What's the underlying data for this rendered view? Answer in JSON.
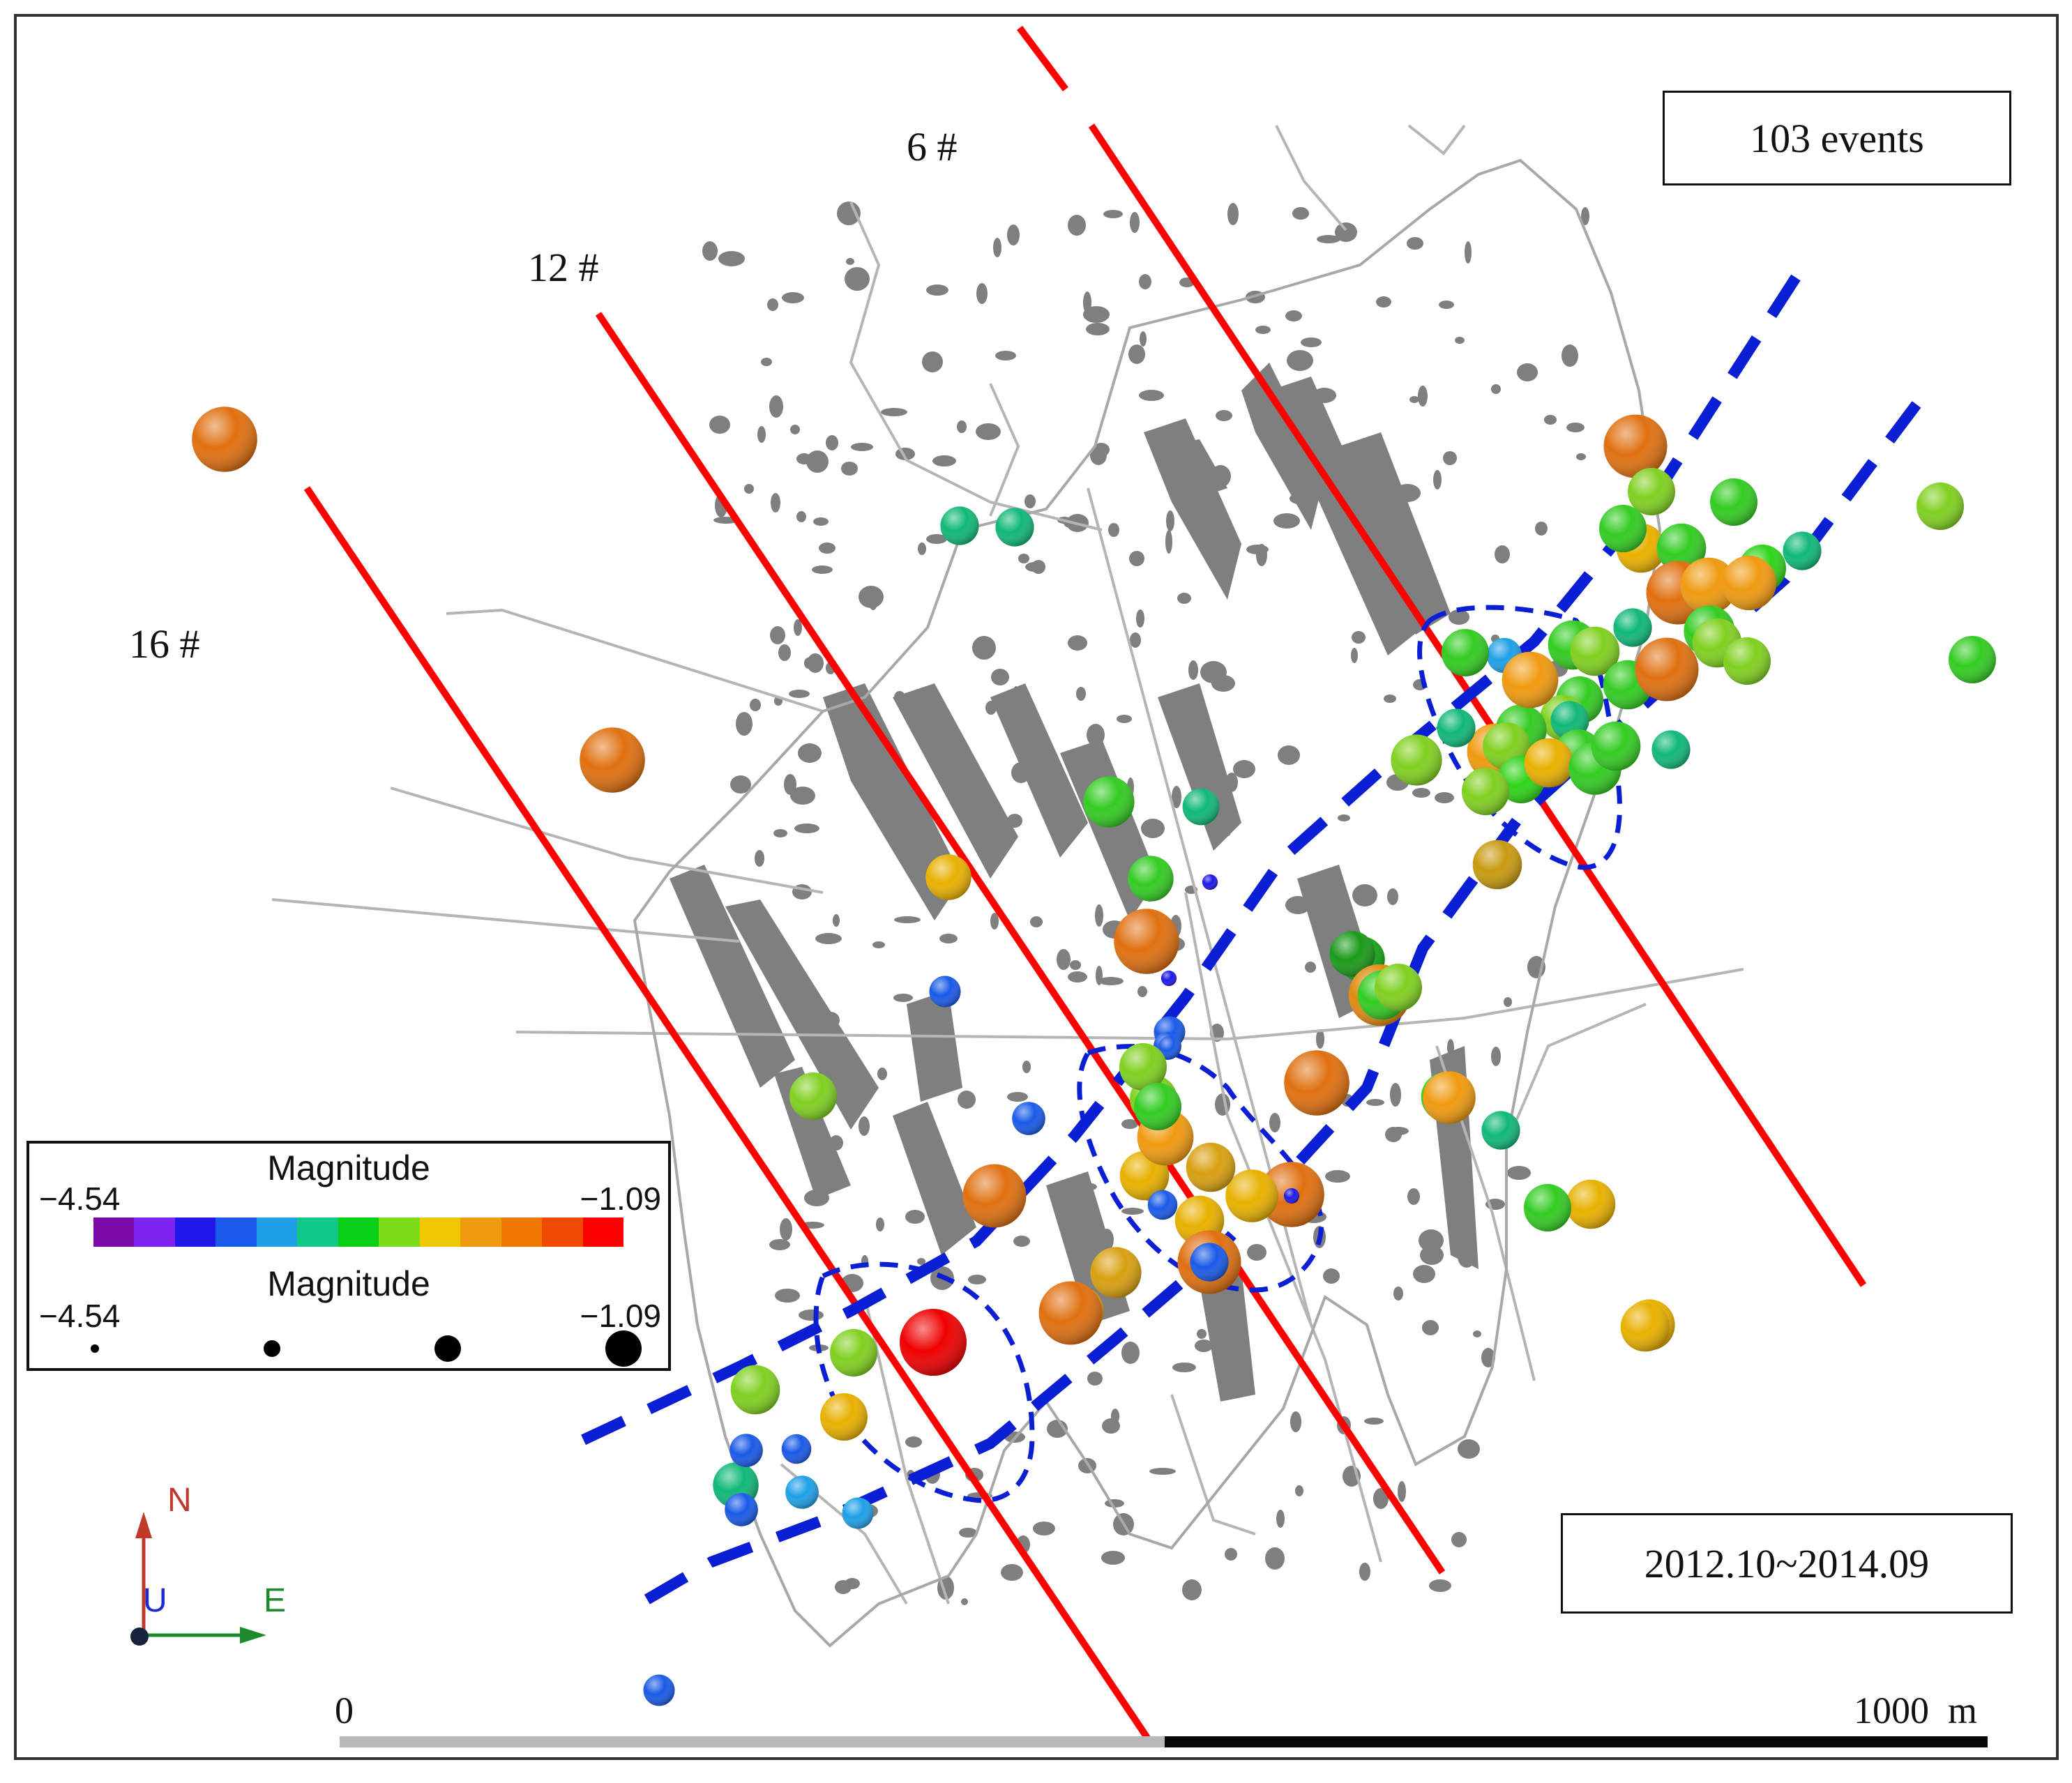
{
  "map": {
    "events_label": "103 events",
    "date_range": "2012.10~2014.09",
    "line_labels": [
      "6 #",
      "12 #",
      "16 #"
    ]
  },
  "colors": {
    "mine_fill": "#7f7f7f",
    "roadway": "#b5b5b5",
    "working_face_line": "#ff0000",
    "fault_dash": "#0a1fd4",
    "frame": "#333333"
  },
  "legend": {
    "color_title": "Magnitude",
    "size_title": "Magnitude",
    "min": "−4.54",
    "max": "−1.09",
    "min_value": -4.54,
    "max_value": -1.09,
    "palette": [
      "#7a0aa8",
      "#7e22f0",
      "#1f18e8",
      "#1a5ae8",
      "#1ea0e6",
      "#10c888",
      "#08d018",
      "#7cdc18",
      "#f0c800",
      "#f09a10",
      "#f07800",
      "#f04a00",
      "#ff0000"
    ],
    "size_steps": [
      -4.54,
      -3.39,
      -2.24,
      -1.09
    ]
  },
  "compass": {
    "north": "N",
    "east": "E",
    "up": "U"
  },
  "scale_bar": {
    "start": "0",
    "end": "1000",
    "unit": "m"
  },
  "events": [
    {
      "m": -1.5,
      "c": "#e07010"
    },
    {
      "m": -1.5,
      "c": "#e07010"
    },
    {
      "m": -2.6,
      "c": "#e8b000"
    },
    {
      "m": -3.0,
      "c": "#10b878"
    },
    {
      "m": -3.0,
      "c": "#10b878"
    },
    {
      "m": -2.3,
      "c": "#33cc22"
    },
    {
      "m": -3.1,
      "c": "#10b878"
    },
    {
      "m": -2.6,
      "c": "#33cc22"
    },
    {
      "m": -1.5,
      "c": "#e07010"
    },
    {
      "m": -3.4,
      "c": "#1a5ae8"
    },
    {
      "m": -3.4,
      "c": "#1a5ae8"
    },
    {
      "m": -2.5,
      "c": "#80d020"
    },
    {
      "m": -3.6,
      "c": "#1a5ae8"
    },
    {
      "m": -1.5,
      "c": "#e07010"
    },
    {
      "m": -2.6,
      "c": "#11a611"
    },
    {
      "m": -2.5,
      "c": "#80d020"
    },
    {
      "m": -2.4,
      "c": "#2ed418"
    },
    {
      "m": -2.5,
      "c": "#80d020"
    },
    {
      "m": -2.4,
      "c": "#e8b000"
    },
    {
      "m": -3.2,
      "c": "#1a5ae8"
    },
    {
      "m": -3.5,
      "c": "#1a5ae8"
    },
    {
      "m": -2.4,
      "c": "#e8b000"
    },
    {
      "m": -1.6,
      "c": "#e07010"
    },
    {
      "m": -3.3,
      "c": "#1ea0e6"
    },
    {
      "m": -1.5,
      "c": "#e07010"
    },
    {
      "m": -2.3,
      "c": "#d8a010"
    },
    {
      "m": -1.6,
      "c": "#e07010"
    },
    {
      "m": -3.5,
      "c": "#1a5ae8"
    },
    {
      "m": -2.6,
      "c": "#10b878"
    },
    {
      "m": -1.4,
      "c": "#f00000"
    },
    {
      "m": -2.5,
      "c": "#80d020"
    },
    {
      "m": -2.4,
      "c": "#80d020"
    },
    {
      "m": -3.3,
      "c": "#1a5ae8"
    },
    {
      "m": -3.3,
      "c": "#1ea0e6"
    },
    {
      "m": -3.3,
      "c": "#1a5ae8"
    },
    {
      "m": -3.4,
      "c": "#1ea0e6"
    },
    {
      "m": -1.6,
      "c": "#e07010"
    },
    {
      "m": -2.5,
      "c": "#80d020"
    },
    {
      "m": -2.4,
      "c": "#e8b000"
    },
    {
      "m": -2.5,
      "c": "#33cc22"
    },
    {
      "m": -2.5,
      "c": "#33cc22"
    },
    {
      "m": -2.5,
      "c": "#80d020"
    },
    {
      "m": -2.5,
      "c": "#33cc22"
    },
    {
      "m": -2.4,
      "c": "#33cc22"
    },
    {
      "m": -2.5,
      "c": "#2ed418"
    },
    {
      "m": -1.6,
      "c": "#e07010"
    },
    {
      "m": -2.0,
      "c": "#f09a10"
    },
    {
      "m": -2.1,
      "c": "#f09a10"
    },
    {
      "m": -2.3,
      "c": "#33cc22"
    },
    {
      "m": -2.4,
      "c": "#80d020"
    },
    {
      "m": -2.5,
      "c": "#80d020"
    },
    {
      "m": -3.2,
      "c": "#1ea0e6"
    },
    {
      "m": -2.5,
      "c": "#33cc22"
    },
    {
      "m": -2.4,
      "c": "#33cc22"
    },
    {
      "m": -3.0,
      "c": "#10b878"
    },
    {
      "m": -3.0,
      "c": "#10b878"
    },
    {
      "m": -2.2,
      "c": "#f09a10"
    },
    {
      "m": -2.4,
      "c": "#80d020"
    },
    {
      "m": -2.4,
      "c": "#33cc22"
    },
    {
      "m": -2.5,
      "c": "#33cc22"
    },
    {
      "m": -2.6,
      "c": "#80d020"
    },
    {
      "m": -3.0,
      "c": "#10b878"
    },
    {
      "m": -1.6,
      "c": "#e07010"
    },
    {
      "m": -2.3,
      "c": "#80d020"
    },
    {
      "m": -2.3,
      "c": "#33cc22"
    },
    {
      "m": -3.0,
      "c": "#10b878"
    },
    {
      "m": -2.4,
      "c": "#c89a10"
    },
    {
      "m": -2.0,
      "c": "#f09a10"
    },
    {
      "m": -2.0,
      "c": "#f09a10"
    },
    {
      "m": -2.5,
      "c": "#33cc22"
    },
    {
      "m": -2.5,
      "c": "#80d020"
    },
    {
      "m": -2.5,
      "c": "#2ed418"
    },
    {
      "m": -2.5,
      "c": "#80d020"
    },
    {
      "m": -2.4,
      "c": "#e8b000"
    },
    {
      "m": -2.2,
      "c": "#33cc22"
    },
    {
      "m": -2.4,
      "c": "#33cc22"
    },
    {
      "m": -4.3,
      "c": "#7a0aa8"
    },
    {
      "m": -4.3,
      "c": "#1f18e8"
    },
    {
      "m": -4.3,
      "c": "#1f18e8"
    },
    {
      "m": -3.9,
      "c": "#1a5ae8"
    },
    {
      "m": -3.3,
      "c": "#1a5ae8"
    },
    {
      "m": -2.2,
      "c": "#e8b000"
    },
    {
      "m": -2.6,
      "c": "#1a9a1a"
    },
    {
      "m": -1.7,
      "c": "#e08a10"
    },
    {
      "m": -2.4,
      "c": "#e8b000"
    },
    {
      "m": -2.3,
      "c": "#e8b000"
    },
    {
      "m": -3.0,
      "c": "#10b878"
    },
    {
      "m": -1.6,
      "c": "#e07010"
    },
    {
      "m": -2.3,
      "c": "#d8a010"
    },
    {
      "m": -2.4,
      "c": "#e8b000"
    },
    {
      "m": -3.4,
      "c": "#1a5ae8"
    },
    {
      "m": -2.5,
      "c": "#e8b000"
    },
    {
      "m": -4.3,
      "c": "#1f18e8"
    },
    {
      "m": -3.0,
      "c": "#1a5ae8"
    },
    {
      "m": -2.0,
      "c": "#f09a10"
    },
    {
      "m": -2.4,
      "c": "#d8a010"
    },
    {
      "m": -2.5,
      "c": "#80d020"
    },
    {
      "m": -2.5,
      "c": "#33cc22"
    },
    {
      "m": -2.4,
      "c": "#33cc22"
    },
    {
      "m": -2.5,
      "c": "#80d020"
    },
    {
      "m": -2.2,
      "c": "#f09a10"
    },
    {
      "m": -2.5,
      "c": "#33cc22"
    },
    {
      "m": -3.0,
      "c": "#10b878"
    }
  ]
}
